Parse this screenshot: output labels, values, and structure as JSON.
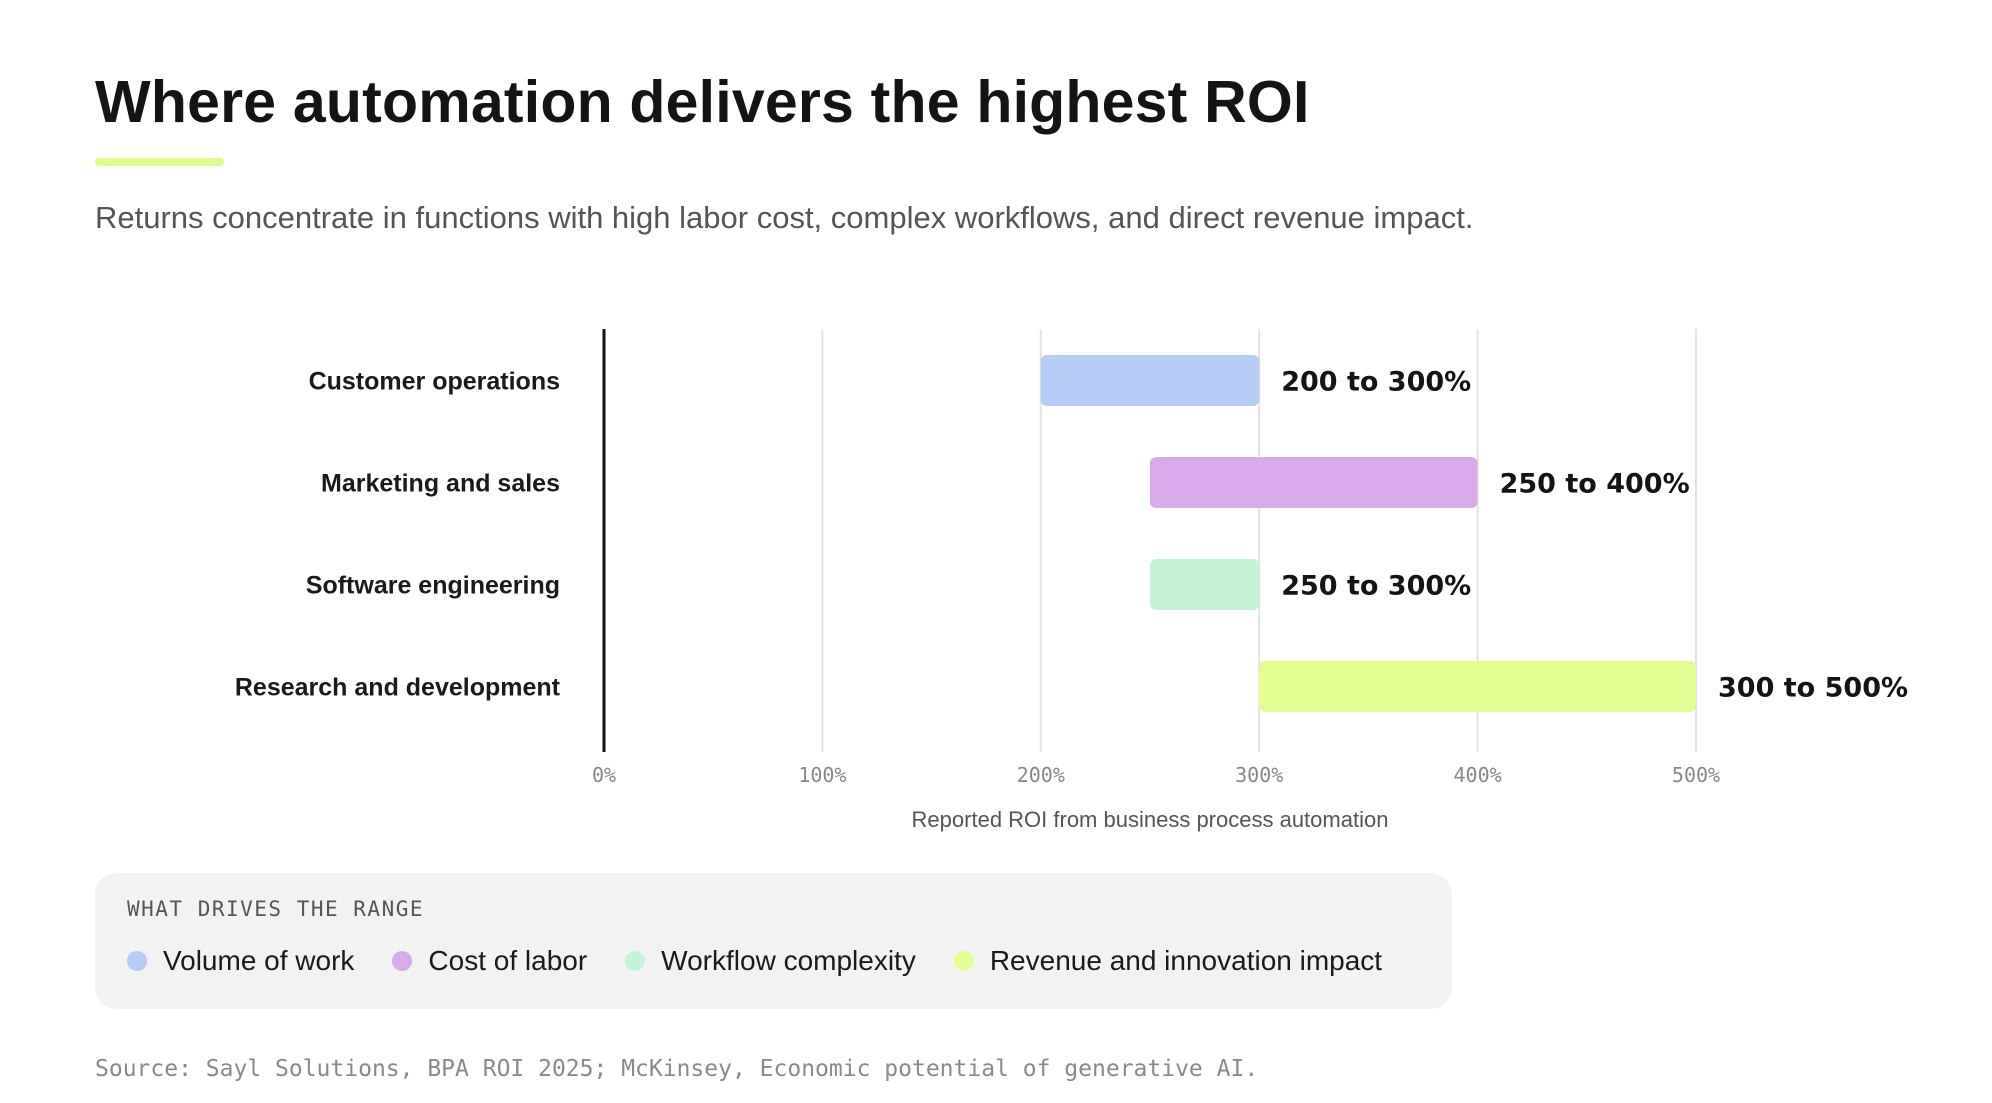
{
  "header": {
    "title": "Where automation delivers the highest ROI",
    "subtitle": "Returns concentrate in functions with high labor cost, complex workflows, and direct revenue impact."
  },
  "chart_data": {
    "type": "bar",
    "orientation": "horizontal-range",
    "categories": [
      "Customer operations",
      "Marketing and sales",
      "Software engineering",
      "Research and development"
    ],
    "series": [
      {
        "values": [
          [
            200,
            300
          ],
          [
            250,
            400
          ],
          [
            250,
            300
          ],
          [
            300,
            500
          ]
        ],
        "labels": [
          "200 to 300%",
          "250 to 400%",
          "250 to 300%",
          "300 to 500%"
        ],
        "colors": [
          "#b5ccf6",
          "#d8aaea",
          "#c4f3d5",
          "#e4fd92"
        ]
      }
    ],
    "xlabel": "Reported ROI from business process automation",
    "ylabel": "",
    "xlim": [
      0,
      500
    ],
    "xticks": [
      0,
      100,
      200,
      300,
      400,
      500
    ],
    "xtick_labels": [
      "0%",
      "100%",
      "200%",
      "300%",
      "400%",
      "500%"
    ],
    "grid": true
  },
  "legend": {
    "title": "WHAT DRIVES THE RANGE",
    "items": [
      {
        "label": "Volume of work",
        "color": "#b5ccf6"
      },
      {
        "label": "Cost of labor",
        "color": "#d8aaea"
      },
      {
        "label": "Workflow complexity",
        "color": "#c4f3d5"
      },
      {
        "label": "Revenue and innovation impact",
        "color": "#e4fd92"
      }
    ]
  },
  "footer": {
    "source": "Source: Sayl Solutions, BPA ROI 2025; McKinsey, Economic potential of generative AI."
  }
}
